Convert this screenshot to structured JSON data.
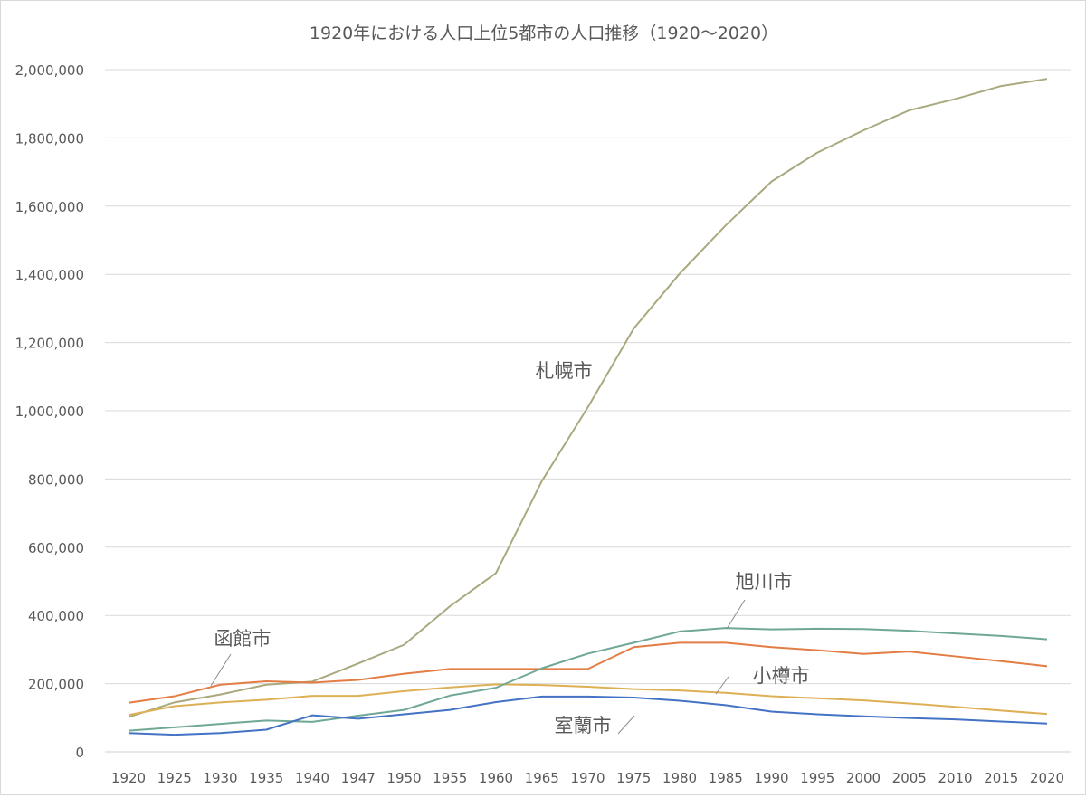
{
  "chart_data": {
    "type": "line",
    "title": "1920年における人口上位5都市の人口推移（1920〜2020）",
    "xlabel": "",
    "ylabel": "",
    "ylim": [
      0,
      2000000
    ],
    "yticks": [
      "0",
      "200,000",
      "400,000",
      "600,000",
      "800,000",
      "1,000,000",
      "1,200,000",
      "1,400,000",
      "1,600,000",
      "1,800,000",
      "2,000,000"
    ],
    "grid": true,
    "legend": "none (data labels on lines)",
    "categories": [
      "1920",
      "1925",
      "1930",
      "1935",
      "1940",
      "1947",
      "1950",
      "1955",
      "1960",
      "1965",
      "1970",
      "1975",
      "1980",
      "1985",
      "1990",
      "1995",
      "2000",
      "2005",
      "2010",
      "2015",
      "2020"
    ],
    "series": [
      {
        "name": "札幌市",
        "color": "#A9A87E",
        "label_at": "1970",
        "values": [
          102000,
          145000,
          168000,
          197000,
          206000,
          259000,
          314000,
          427000,
          524000,
          794000,
          1010000,
          1241000,
          1402000,
          1543000,
          1672000,
          1757000,
          1822000,
          1881000,
          1914000,
          1952000,
          1973000
        ]
      },
      {
        "name": "函館市",
        "color": "#E37D45",
        "label_at": "1930",
        "values": [
          144000,
          163000,
          197000,
          207000,
          203000,
          211000,
          229000,
          243000,
          243000,
          243000,
          243000,
          307000,
          320000,
          320000,
          307000,
          298000,
          287000,
          294000,
          280000,
          266000,
          251000
        ]
      },
      {
        "name": "小樽市",
        "color": "#DDB055",
        "label_at": "1985",
        "values": [
          108000,
          134000,
          145000,
          153000,
          164000,
          164000,
          178000,
          189000,
          198000,
          196000,
          191000,
          184000,
          180000,
          173000,
          163000,
          157000,
          151000,
          142000,
          132000,
          121000,
          111000
        ]
      },
      {
        "name": "旭川市",
        "color": "#6FA894",
        "label_at": "1985",
        "values": [
          62000,
          72000,
          82000,
          92000,
          88000,
          106000,
          123000,
          165000,
          188000,
          245000,
          288000,
          320000,
          353000,
          363000,
          359000,
          361000,
          360000,
          355000,
          347000,
          340000,
          330000
        ]
      },
      {
        "name": "室蘭市",
        "color": "#4472C4",
        "label_at": "1975",
        "values": [
          55000,
          50000,
          55000,
          65000,
          107000,
          97000,
          110000,
          123000,
          146000,
          162000,
          162000,
          159000,
          150000,
          137000,
          118000,
          110000,
          104000,
          99000,
          95000,
          89000,
          83000
        ]
      }
    ]
  }
}
